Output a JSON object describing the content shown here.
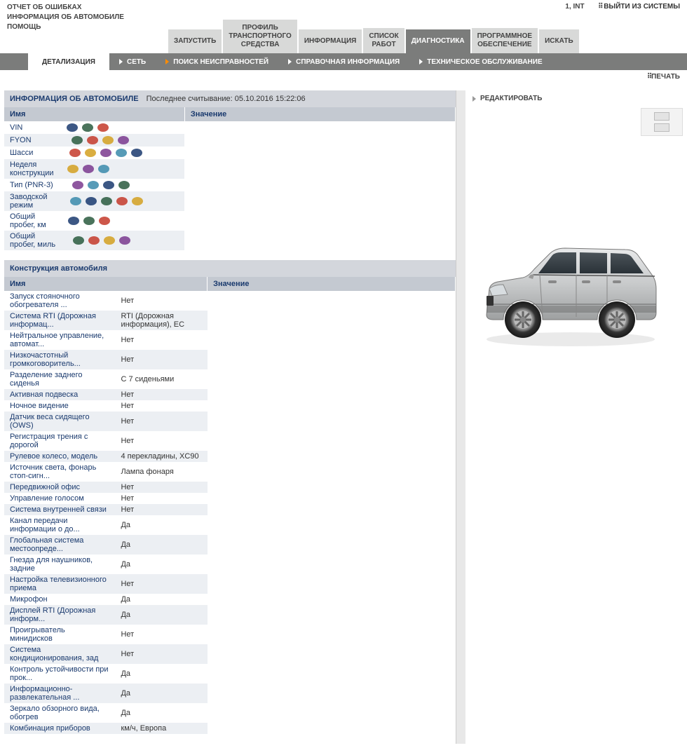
{
  "header": {
    "line1": "ОТЧЕТ ОБ ОШИБКАХ",
    "line2": "ИНФОРМАЦИЯ ОБ АВТОМОБИЛЕ",
    "line3": "ПОМОЩЬ",
    "user_info": "1, INT",
    "logout": "ВЫЙТИ ИЗ СИСТЕМЫ"
  },
  "main_tabs": [
    {
      "label": "ЗАПУСТИТЬ"
    },
    {
      "label": "ПРОФИЛЬ\nТРАНСПОРТНОГО\nСРЕДСТВА"
    },
    {
      "label": "ИНФОРМАЦИЯ"
    },
    {
      "label": "СПИСОК\nРАБОТ"
    },
    {
      "label": "ДИАГНОСТИКА",
      "active": true
    },
    {
      "label": "ПРОГРАММНОЕ\nОБЕСПЕЧЕНИЕ"
    },
    {
      "label": "ИСКАТЬ"
    }
  ],
  "sub_tabs": [
    {
      "label": "ДЕТАЛИЗАЦИЯ",
      "active": true
    },
    {
      "label": "СЕТЬ"
    },
    {
      "label": "ПОИСК НЕИСПРАВНОСТЕЙ",
      "orange": true
    },
    {
      "label": "СПРАВОЧНАЯ ИНФОРМАЦИЯ"
    },
    {
      "label": "ТЕХНИЧЕСКОЕ ОБСЛУЖИВАНИЕ"
    }
  ],
  "print_label": "ПЕЧАТЬ",
  "edit_label": "РЕДАКТИРОВАТЬ",
  "vehicle_info": {
    "title": "ИНФОРМАЦИЯ ОБ АВТОМОБИЛЕ",
    "subtitle": "Последнее считывание: 05.10.2016 15:22:06",
    "col_name": "Имя",
    "col_value": "Значение",
    "rows": [
      {
        "name": "VIN",
        "value": ""
      },
      {
        "name": "FYON",
        "value": ""
      },
      {
        "name": "Шасси",
        "value": ""
      },
      {
        "name": "Неделя конструкции",
        "value": ""
      },
      {
        "name": "Тип (PNR-3)",
        "value": ""
      },
      {
        "name": "Заводской режим",
        "value": ""
      },
      {
        "name": "Общий пробег, км",
        "value": ""
      },
      {
        "name": "Общий пробег, миль",
        "value": ""
      }
    ]
  },
  "construction": {
    "title": "Конструкция автомобиля",
    "col_name": "Имя",
    "col_value": "Значение",
    "rows": [
      {
        "name": "Запуск стояночного обогревателя ...",
        "value": "Нет"
      },
      {
        "name": "Система RTI (Дорожная информац...",
        "value": "RTI (Дорожная информация), EC"
      },
      {
        "name": "Нейтральное управление, автомат...",
        "value": "Нет"
      },
      {
        "name": "Низкочастотный громкоговоритель...",
        "value": "Нет"
      },
      {
        "name": "Разделение заднего сиденья",
        "value": "С 7 сиденьями"
      },
      {
        "name": "Активная подвеска",
        "value": "Нет"
      },
      {
        "name": "Ночное видение",
        "value": "Нет"
      },
      {
        "name": "Датчик веса сидящего (OWS)",
        "value": "Нет"
      },
      {
        "name": "Регистрация трения с дорогой",
        "value": "Нет"
      },
      {
        "name": "Рулевое колесо, модель",
        "value": "4 перекладины, XC90"
      },
      {
        "name": "Источник света, фонарь стоп-сигн...",
        "value": "Лампа фонаря"
      },
      {
        "name": "Передвижной офис",
        "value": "Нет"
      },
      {
        "name": "Управление голосом",
        "value": "Нет"
      },
      {
        "name": "Система внутренней связи",
        "value": "Нет"
      },
      {
        "name": "Канал передачи информации о до...",
        "value": "Да"
      },
      {
        "name": "Глобальная система местоопреде...",
        "value": "Да"
      },
      {
        "name": "Гнезда для наушников, задние",
        "value": "Да"
      },
      {
        "name": "Настройка телевизионного приема",
        "value": "Нет"
      },
      {
        "name": "Микрофон",
        "value": "Да"
      },
      {
        "name": "Дисплей RTI (Дорожная информ...",
        "value": "Да"
      },
      {
        "name": "Проигрыватель минидисков",
        "value": "Нет"
      },
      {
        "name": "Система кондиционирования, зад",
        "value": "Нет"
      },
      {
        "name": "Контроль устойчивости при прок...",
        "value": "Да"
      },
      {
        "name": "Информационно-развлекательная ...",
        "value": "Да"
      },
      {
        "name": "Зеркало обзорного вида, обогрев",
        "value": "Да"
      },
      {
        "name": "Комбинация приборов",
        "value": "км/ч, Европа"
      }
    ]
  },
  "colors": {
    "tab_bg": "#d8d9d8",
    "tab_active_bg": "#7b7c7b",
    "strip_bg": "#7b7c7b",
    "section_header_bg": "#d3d6dc",
    "table_header_bg": "#c4c9d1",
    "row_even_bg": "#eceff3",
    "link_color": "#1a3a6e",
    "orange": "#ff8c00"
  }
}
